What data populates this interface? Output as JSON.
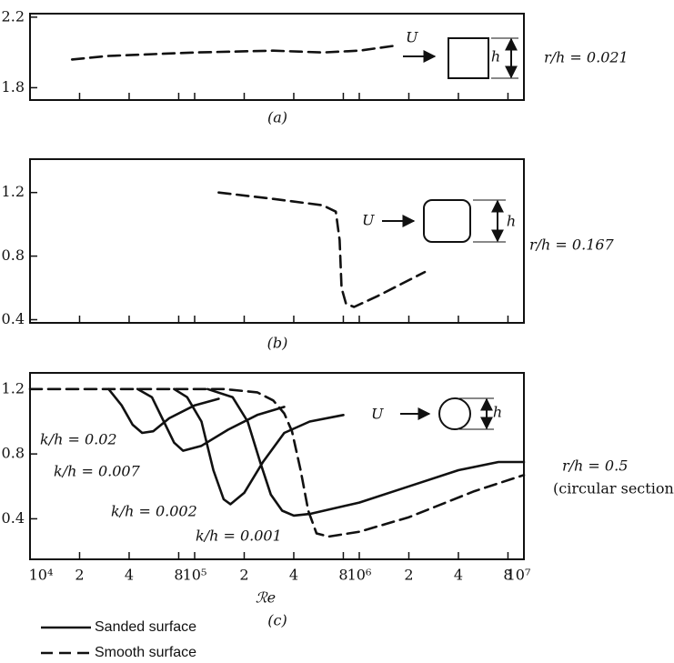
{
  "chart_data": [
    {
      "type": "line",
      "caption": "(a)",
      "xscale": "log",
      "xlim": [
        10000,
        10000000
      ],
      "ylim": [
        1.73,
        2.22
      ],
      "yticks": [
        2.2,
        1.8
      ],
      "annotations": {
        "flow": "U",
        "size": "h",
        "ratio": "r/h = 0.021"
      },
      "series": [
        {
          "linestyle": "dashed",
          "color": "#111111",
          "x": [
            18000,
            30000,
            100000,
            300000,
            600000,
            1000000,
            1700000
          ],
          "values": [
            1.96,
            1.98,
            2.0,
            2.01,
            2.0,
            2.01,
            2.04
          ]
        }
      ]
    },
    {
      "type": "line",
      "caption": "(b)",
      "xscale": "log",
      "xlim": [
        10000,
        10000000
      ],
      "ylim": [
        0.38,
        1.41
      ],
      "yticks": [
        1.2,
        0.8,
        0.4
      ],
      "annotations": {
        "flow": "U",
        "size": "h",
        "ratio": "r/h = 0.167"
      },
      "series": [
        {
          "linestyle": "dashed",
          "color": "#111111",
          "x": [
            140000,
            300000,
            600000,
            720000,
            760000,
            780000,
            830000,
            930000,
            1300000,
            2500000
          ],
          "values": [
            1.2,
            1.16,
            1.12,
            1.08,
            0.9,
            0.6,
            0.5,
            0.48,
            0.55,
            0.7
          ]
        }
      ]
    },
    {
      "type": "line",
      "caption": "(c)",
      "xlabel": "ℛe",
      "xscale": "log",
      "xlim": [
        10000,
        10000000
      ],
      "ylim": [
        0.15,
        1.3
      ],
      "yticks": [
        1.2,
        0.8,
        0.4
      ],
      "xticks": [
        {
          "value": 10000,
          "label": "10⁴"
        },
        {
          "value": 20000,
          "label": "2"
        },
        {
          "value": 40000,
          "label": "4"
        },
        {
          "value": 80000,
          "label": "8"
        },
        {
          "value": 100000,
          "label": "10⁵"
        },
        {
          "value": 200000,
          "label": "2"
        },
        {
          "value": 400000,
          "label": "4"
        },
        {
          "value": 800000,
          "label": "8"
        },
        {
          "value": 1000000,
          "label": "10⁶"
        },
        {
          "value": 2000000,
          "label": "2"
        },
        {
          "value": 4000000,
          "label": "4"
        },
        {
          "value": 8000000,
          "label": "8"
        },
        {
          "value": 10000000,
          "label": "10⁷"
        }
      ],
      "annotations": {
        "flow": "U",
        "size": "h",
        "k1": "k/h = 0.02",
        "k2": "k/h = 0.007",
        "k3": "k/h = 0.002",
        "k4": "k/h = 0.001",
        "ratio": "r/h = 0.5",
        "section": "(circular section)"
      },
      "series": [
        {
          "name": "Sanded surface",
          "linestyle": "solid",
          "color": "#111111",
          "x": [
            30000,
            36000,
            42000,
            48000,
            56000,
            70000,
            100000,
            140000,
            null,
            45000,
            55000,
            65000,
            75000,
            85000,
            110000,
            160000,
            240000,
            350000,
            null,
            75000,
            90000,
            110000,
            130000,
            150000,
            165000,
            200000,
            260000,
            350000,
            500000,
            800000,
            null,
            120000,
            170000,
            210000,
            250000,
            290000,
            340000,
            400000,
            500000,
            1000000,
            2000000,
            4000000,
            7000000,
            10000000
          ],
          "values": [
            1.2,
            1.1,
            0.98,
            0.93,
            0.94,
            1.02,
            1.1,
            1.14,
            null,
            1.2,
            1.15,
            1.0,
            0.87,
            0.82,
            0.85,
            0.95,
            1.04,
            1.09,
            null,
            1.2,
            1.15,
            1.0,
            0.7,
            0.52,
            0.49,
            0.56,
            0.75,
            0.93,
            1.0,
            1.04,
            null,
            1.2,
            1.15,
            1.0,
            0.75,
            0.55,
            0.45,
            0.42,
            0.43,
            0.5,
            0.6,
            0.7,
            0.75,
            0.75
          ]
        },
        {
          "name": "Smooth surface",
          "linestyle": "dashed",
          "color": "#111111",
          "x": [
            10000,
            150000,
            240000,
            300000,
            350000,
            390000,
            440000,
            490000,
            550000,
            650000,
            1000000,
            2000000,
            5000000,
            10000000
          ],
          "values": [
            1.2,
            1.2,
            1.18,
            1.13,
            1.05,
            0.94,
            0.7,
            0.45,
            0.31,
            0.29,
            0.32,
            0.41,
            0.57,
            0.67
          ]
        }
      ]
    }
  ]
}
